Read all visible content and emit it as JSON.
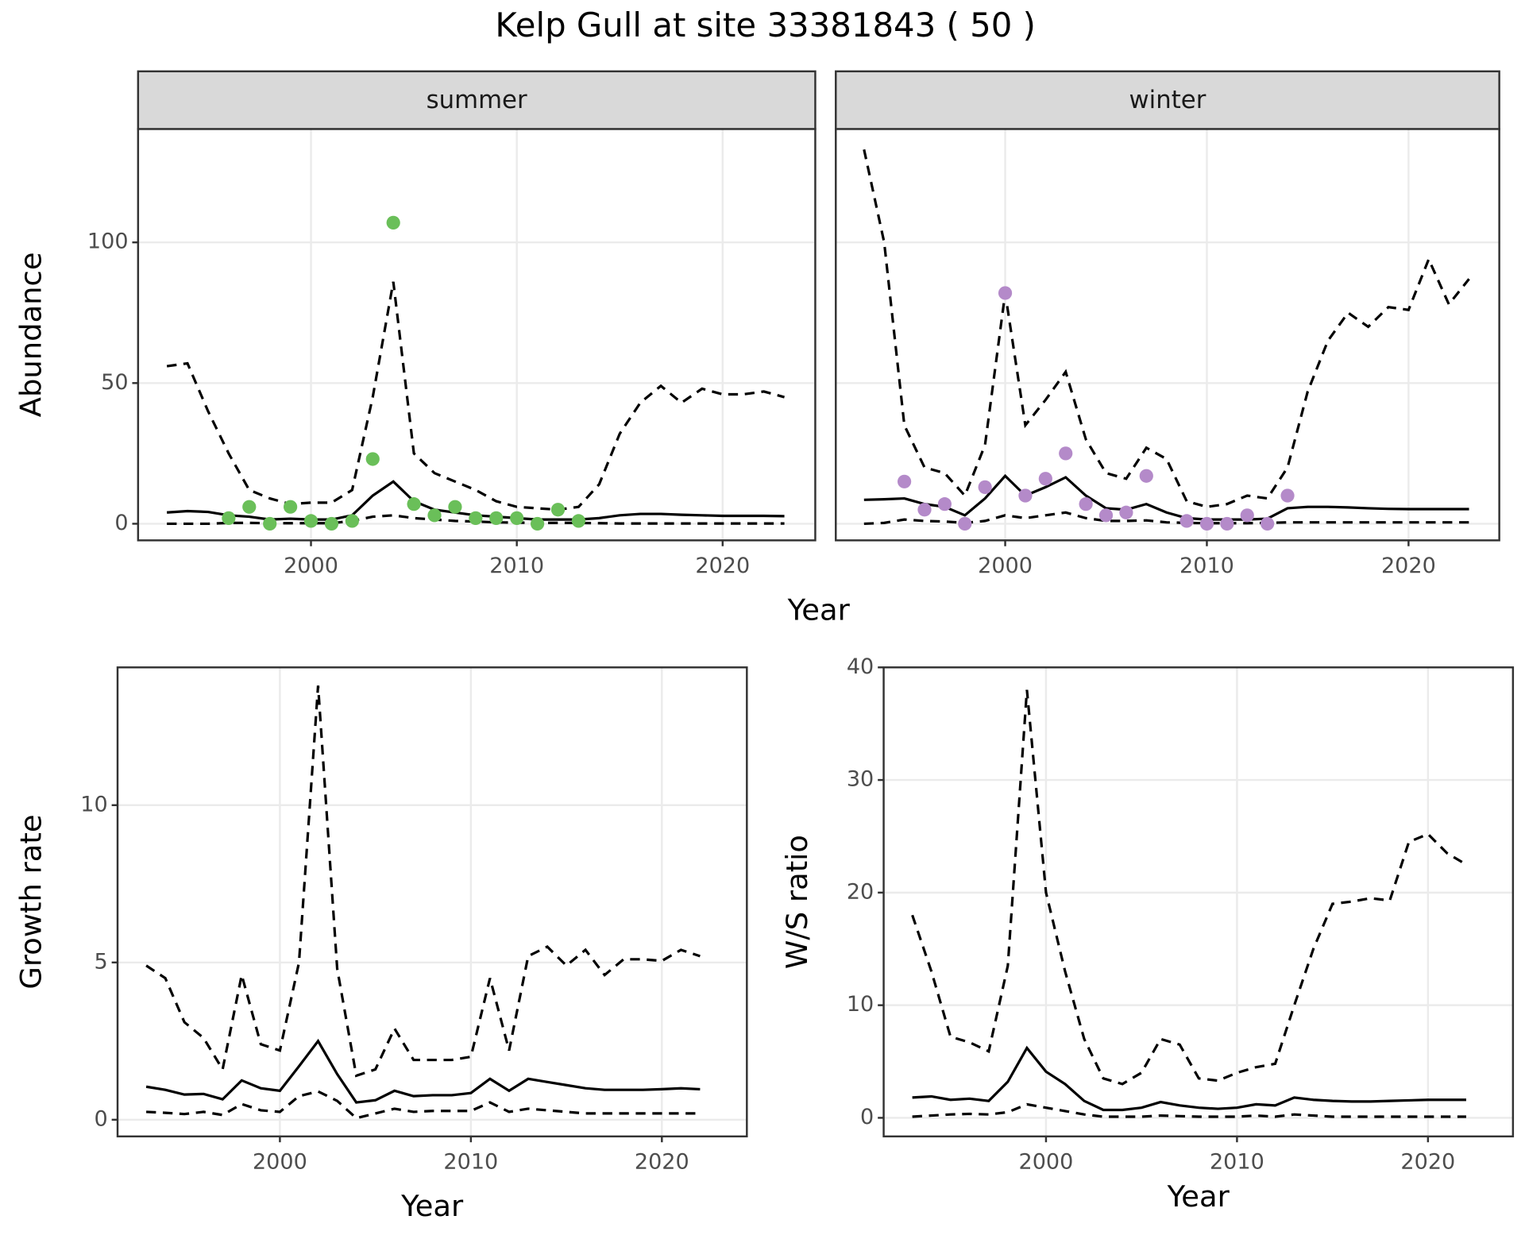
{
  "title": "Kelp Gull at site 33381843 ( 50 )",
  "chart_data": [
    {
      "type": "line",
      "title": "summer",
      "x_label": "Year",
      "y_label": "Abundance",
      "xlim": [
        1991.6,
        2024.5
      ],
      "ylim": [
        -5.9,
        140.3
      ],
      "xticks": [
        2000,
        2010,
        2020
      ],
      "yticks": [
        0,
        50,
        100
      ],
      "ytick_labels": true,
      "grid": true,
      "series": [
        {
          "mark": "line",
          "style": "solid",
          "color": "#000000",
          "x": [
            1993,
            1994,
            1995,
            1996,
            1997,
            1998,
            1999,
            2000,
            2001,
            2002,
            2003,
            2004,
            2005,
            2006,
            2007,
            2008,
            2009,
            2010,
            2011,
            2012,
            2013,
            2014,
            2015,
            2016,
            2017,
            2018,
            2019,
            2020,
            2021,
            2022,
            2023
          ],
          "values": [
            4,
            4.5,
            4.2,
            3,
            2.5,
            1.5,
            1.8,
            1.5,
            1.5,
            3,
            10,
            15,
            8,
            5,
            4,
            3,
            2.5,
            2,
            1.5,
            1.5,
            1.5,
            2,
            3,
            3.5,
            3.5,
            3.2,
            3,
            2.8,
            2.8,
            2.8,
            2.7
          ]
        },
        {
          "mark": "line",
          "style": "dashed",
          "color": "#000000",
          "x": [
            1993,
            1994,
            1995,
            1996,
            1997,
            1998,
            1999,
            2000,
            2001,
            2002,
            2003,
            2004,
            2005,
            2006,
            2007,
            2008,
            2009,
            2010,
            2011,
            2012,
            2013,
            2014,
            2015,
            2016,
            2017,
            2018,
            2019,
            2020,
            2021,
            2022,
            2023
          ],
          "values": [
            56,
            57,
            40,
            25,
            12,
            9,
            7,
            7.5,
            7.5,
            12,
            45,
            86,
            25,
            18,
            15,
            12,
            8,
            6,
            5.5,
            5,
            6,
            14,
            32,
            43,
            49,
            43,
            48,
            46,
            46,
            47,
            45
          ]
        },
        {
          "mark": "line",
          "style": "dashed",
          "color": "#000000",
          "x": [
            1993,
            1994,
            1995,
            1996,
            1997,
            1998,
            1999,
            2000,
            2001,
            2002,
            2003,
            2004,
            2005,
            2006,
            2007,
            2008,
            2009,
            2010,
            2011,
            2012,
            2013,
            2014,
            2015,
            2016,
            2017,
            2018,
            2019,
            2020,
            2021,
            2022,
            2023
          ],
          "values": [
            0,
            0,
            0,
            0.3,
            0.3,
            0.2,
            0.2,
            0.2,
            0.2,
            1,
            2.5,
            3,
            2,
            1.5,
            1,
            0.8,
            0.5,
            0.4,
            0.3,
            0.3,
            0.3,
            0.2,
            0.1,
            0.1,
            0.1,
            0.1,
            0.1,
            0.1,
            0.1,
            0.1,
            0.1
          ]
        },
        {
          "mark": "point",
          "color": "#6abf59",
          "x": [
            1996,
            1997,
            1998,
            1999,
            2000,
            2001,
            2002,
            2003,
            2004,
            2005,
            2006,
            2007,
            2008,
            2009,
            2010,
            2011,
            2012,
            2013
          ],
          "values": [
            2,
            6,
            0,
            6,
            1,
            0,
            1,
            23,
            107,
            7,
            3,
            6,
            2,
            2,
            2,
            0,
            5,
            1
          ]
        }
      ]
    },
    {
      "type": "line",
      "title": "winter",
      "xlim": [
        1991.6,
        2024.5
      ],
      "ylim": [
        -5.9,
        140.3
      ],
      "xticks": [
        2000,
        2010,
        2020
      ],
      "yticks": [
        0,
        50,
        100
      ],
      "ytick_labels": false,
      "grid": true,
      "series": [
        {
          "mark": "line",
          "style": "solid",
          "color": "#000000",
          "x": [
            1993,
            1994,
            1995,
            1996,
            1997,
            1998,
            1999,
            2000,
            2001,
            2002,
            2003,
            2004,
            2005,
            2006,
            2007,
            2008,
            2009,
            2010,
            2011,
            2012,
            2013,
            2014,
            2015,
            2016,
            2017,
            2018,
            2019,
            2020,
            2021,
            2022,
            2023
          ],
          "values": [
            8.5,
            8.7,
            9,
            7,
            6,
            3,
            9,
            17,
            10,
            13,
            16.5,
            10,
            5.5,
            5,
            7,
            4,
            2,
            1.5,
            1.5,
            1.5,
            1.8,
            5.5,
            6,
            6,
            5.8,
            5.5,
            5.3,
            5.2,
            5.2,
            5.2,
            5.2
          ]
        },
        {
          "mark": "line",
          "style": "dashed",
          "color": "#000000",
          "x": [
            1993,
            1994,
            1995,
            1996,
            1997,
            1998,
            1999,
            2000,
            2001,
            2002,
            2003,
            2004,
            2005,
            2006,
            2007,
            2008,
            2009,
            2010,
            2011,
            2012,
            2013,
            2014,
            2015,
            2016,
            2017,
            2018,
            2019,
            2020,
            2021,
            2022,
            2023
          ],
          "values": [
            133,
            100,
            35,
            20,
            18,
            10,
            28,
            82,
            35,
            44,
            54,
            30,
            18,
            16,
            27,
            23,
            8,
            6,
            7,
            10,
            9,
            20,
            47,
            65,
            75,
            70,
            77,
            76,
            94,
            78,
            87
          ]
        },
        {
          "mark": "line",
          "style": "dashed",
          "color": "#000000",
          "x": [
            1993,
            1994,
            1995,
            1996,
            1997,
            1998,
            1999,
            2000,
            2001,
            2002,
            2003,
            2004,
            2005,
            2006,
            2007,
            2008,
            2009,
            2010,
            2011,
            2012,
            2013,
            2014,
            2015,
            2016,
            2017,
            2018,
            2019,
            2020,
            2021,
            2022,
            2023
          ],
          "values": [
            0,
            0.3,
            1.5,
            1,
            0.8,
            0.3,
            1,
            3,
            2,
            3,
            4,
            2,
            1,
            1,
            1.2,
            0.5,
            0.3,
            0.2,
            0.2,
            0.2,
            0.3,
            0.5,
            0.5,
            0.5,
            0.5,
            0.5,
            0.5,
            0.5,
            0.5,
            0.5,
            0.5
          ]
        },
        {
          "mark": "point",
          "color": "#b48ac9",
          "x": [
            1995,
            1996,
            1997,
            1998,
            1999,
            2000,
            2001,
            2002,
            2003,
            2004,
            2005,
            2006,
            2007,
            2009,
            2010,
            2011,
            2012,
            2013,
            2014
          ],
          "values": [
            15,
            5,
            7,
            0,
            13,
            82,
            10,
            16,
            25,
            7,
            3,
            4,
            17,
            1,
            0,
            0,
            3,
            0,
            10
          ]
        }
      ]
    },
    {
      "type": "line",
      "x_label": "Year",
      "y_label": "Growth rate",
      "xlim": [
        1991.5,
        2024.45
      ],
      "ylim": [
        -0.53,
        14.38
      ],
      "xticks": [
        2000,
        2010,
        2020
      ],
      "yticks": [
        0,
        5,
        10
      ],
      "ytick_labels": true,
      "grid": true,
      "series": [
        {
          "mark": "line",
          "style": "solid",
          "color": "#000000",
          "x": [
            1993,
            1994,
            1995,
            1996,
            1997,
            1998,
            1999,
            2000,
            2001,
            2002,
            2003,
            2004,
            2005,
            2006,
            2007,
            2008,
            2009,
            2010,
            2011,
            2012,
            2013,
            2014,
            2015,
            2016,
            2017,
            2018,
            2019,
            2020,
            2021,
            2022
          ],
          "values": [
            1.05,
            0.95,
            0.8,
            0.82,
            0.65,
            1.25,
            1.0,
            0.92,
            1.7,
            2.5,
            1.45,
            0.55,
            0.62,
            0.92,
            0.75,
            0.78,
            0.78,
            0.85,
            1.3,
            0.92,
            1.3,
            1.2,
            1.1,
            1.0,
            0.95,
            0.95,
            0.95,
            0.97,
            1.0,
            0.97
          ]
        },
        {
          "mark": "line",
          "style": "dashed",
          "color": "#000000",
          "x": [
            1993,
            1994,
            1995,
            1996,
            1997,
            1998,
            1999,
            2000,
            2001,
            2002,
            2003,
            2004,
            2005,
            2006,
            2007,
            2008,
            2009,
            2010,
            2011,
            2012,
            2013,
            2014,
            2015,
            2016,
            2017,
            2018,
            2019,
            2020,
            2021,
            2022
          ],
          "values": [
            4.9,
            4.5,
            3.1,
            2.6,
            1.6,
            4.6,
            2.4,
            2.2,
            5,
            13.8,
            4.8,
            1.4,
            1.6,
            2.9,
            1.9,
            1.9,
            1.9,
            2,
            4.5,
            2.2,
            5.2,
            5.5,
            4.9,
            5.4,
            4.6,
            5.1,
            5.1,
            5.05,
            5.4,
            5.2
          ]
        },
        {
          "mark": "line",
          "style": "dashed",
          "color": "#000000",
          "x": [
            1993,
            1994,
            1995,
            1996,
            1997,
            1998,
            1999,
            2000,
            2001,
            2002,
            2003,
            2004,
            2005,
            2006,
            2007,
            2008,
            2009,
            2010,
            2011,
            2012,
            2013,
            2014,
            2015,
            2016,
            2017,
            2018,
            2019,
            2020,
            2021,
            2022
          ],
          "values": [
            0.25,
            0.22,
            0.18,
            0.25,
            0.15,
            0.5,
            0.3,
            0.25,
            0.75,
            0.9,
            0.6,
            0.05,
            0.2,
            0.35,
            0.25,
            0.28,
            0.28,
            0.28,
            0.55,
            0.25,
            0.35,
            0.3,
            0.25,
            0.2,
            0.2,
            0.2,
            0.2,
            0.2,
            0.2,
            0.2
          ]
        }
      ]
    },
    {
      "type": "line",
      "x_label": "Year",
      "y_label": "W/S ratio",
      "xlim": [
        1991.5,
        2024.45
      ],
      "ylim": [
        -1.65,
        40
      ],
      "xticks": [
        2000,
        2010,
        2020
      ],
      "yticks": [
        0,
        10,
        20,
        30,
        40
      ],
      "ytick_labels": true,
      "grid": true,
      "series": [
        {
          "mark": "line",
          "style": "solid",
          "color": "#000000",
          "x": [
            1993,
            1994,
            1995,
            1996,
            1997,
            1998,
            1999,
            2000,
            2001,
            2002,
            2003,
            2004,
            2005,
            2006,
            2007,
            2008,
            2009,
            2010,
            2011,
            2012,
            2013,
            2014,
            2015,
            2016,
            2017,
            2018,
            2019,
            2020,
            2021,
            2022
          ],
          "values": [
            1.8,
            1.9,
            1.6,
            1.7,
            1.5,
            3.2,
            6.2,
            4.1,
            3.0,
            1.5,
            0.7,
            0.7,
            0.9,
            1.4,
            1.1,
            0.9,
            0.8,
            0.9,
            1.2,
            1.1,
            1.8,
            1.6,
            1.5,
            1.45,
            1.45,
            1.5,
            1.55,
            1.6,
            1.6,
            1.6
          ]
        },
        {
          "mark": "line",
          "style": "dashed",
          "color": "#000000",
          "x": [
            1993,
            1994,
            1995,
            1996,
            1997,
            1998,
            1999,
            2000,
            2001,
            2002,
            2003,
            2004,
            2005,
            2006,
            2007,
            2008,
            2009,
            2010,
            2011,
            2012,
            2013,
            2014,
            2015,
            2016,
            2017,
            2018,
            2019,
            2020,
            2021,
            2022
          ],
          "values": [
            18,
            13,
            7.2,
            6.7,
            5.9,
            13.5,
            38,
            20,
            13,
            7,
            3.5,
            3,
            4,
            7,
            6.5,
            3.5,
            3.3,
            4,
            4.5,
            4.8,
            10,
            15,
            19,
            19.2,
            19.5,
            19.3,
            24.5,
            25.2,
            23.5,
            22.5
          ]
        },
        {
          "mark": "line",
          "style": "dashed",
          "color": "#000000",
          "x": [
            1993,
            1994,
            1995,
            1996,
            1997,
            1998,
            1999,
            2000,
            2001,
            2002,
            2003,
            2004,
            2005,
            2006,
            2007,
            2008,
            2009,
            2010,
            2011,
            2012,
            2013,
            2014,
            2015,
            2016,
            2017,
            2018,
            2019,
            2020,
            2021,
            2022
          ],
          "values": [
            0.1,
            0.2,
            0.3,
            0.35,
            0.3,
            0.5,
            1.2,
            0.9,
            0.6,
            0.3,
            0.1,
            0.1,
            0.1,
            0.2,
            0.15,
            0.1,
            0.1,
            0.1,
            0.2,
            0.1,
            0.3,
            0.2,
            0.1,
            0.1,
            0.1,
            0.1,
            0.1,
            0.1,
            0.1,
            0.1
          ]
        }
      ]
    }
  ]
}
